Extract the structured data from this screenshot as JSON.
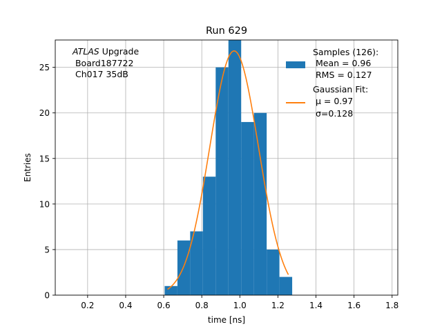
{
  "chart_data": {
    "type": "bar",
    "title": "Run 629",
    "xlabel": "time [ns]",
    "ylabel": "Entries",
    "xlim": [
      0.03,
      1.83
    ],
    "ylim": [
      0,
      28
    ],
    "xticks": [
      "0.2",
      "0.4",
      "0.6",
      "0.8",
      "1.0",
      "1.2",
      "1.4",
      "1.6",
      "1.8"
    ],
    "xtick_values": [
      0.2,
      0.4,
      0.6,
      0.8,
      1.0,
      1.2,
      1.4,
      1.6,
      1.8
    ],
    "yticks": [
      "0",
      "5",
      "10",
      "15",
      "20",
      "25"
    ],
    "ytick_values": [
      0,
      5,
      10,
      15,
      20,
      25
    ],
    "grid": true,
    "histogram": {
      "name": "Samples (126):",
      "color": "#1f77b4",
      "bins": [
        {
          "x0": 0.605,
          "x1": 0.672,
          "count": 1
        },
        {
          "x0": 0.672,
          "x1": 0.739,
          "count": 6
        },
        {
          "x0": 0.739,
          "x1": 0.806,
          "count": 7
        },
        {
          "x0": 0.806,
          "x1": 0.873,
          "count": 13
        },
        {
          "x0": 0.873,
          "x1": 0.94,
          "count": 25
        },
        {
          "x0": 0.94,
          "x1": 1.007,
          "count": 28
        },
        {
          "x0": 1.007,
          "x1": 1.074,
          "count": 19
        },
        {
          "x0": 1.074,
          "x1": 1.141,
          "count": 20
        },
        {
          "x0": 1.141,
          "x1": 1.208,
          "count": 5
        },
        {
          "x0": 1.208,
          "x1": 1.275,
          "count": 2
        }
      ]
    },
    "fit": {
      "name": "Gaussian Fit:",
      "color": "#ff7f0e",
      "amplitude": 26.8,
      "mu": 0.97,
      "sigma": 0.128,
      "x_range": [
        0.62,
        1.255
      ]
    },
    "legend_position": "top-right",
    "legend": {
      "hist_lines": [
        "Samples (126):",
        " Mean = 0.96",
        " RMS = 0.127"
      ],
      "fit_lines": [
        "Gaussian Fit:",
        " μ = 0.97",
        " σ=0.128"
      ]
    },
    "annotation": {
      "italic": "ATLAS",
      "line1_rest": " Upgrade",
      "line2": " Board187722",
      "line3": " Ch017 35dB"
    }
  }
}
